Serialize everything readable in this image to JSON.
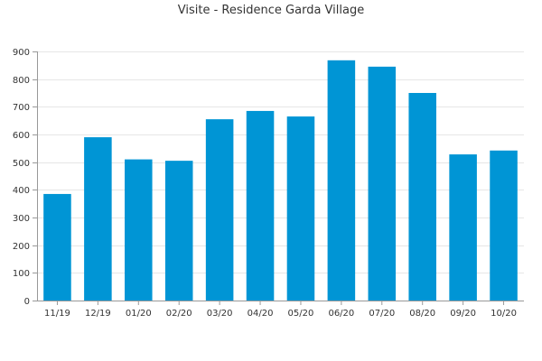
{
  "chart_data": {
    "type": "bar",
    "title": "Visite - Residence Garda Village",
    "xlabel": "",
    "ylabel": "",
    "categories": [
      "11/19",
      "12/19",
      "01/20",
      "02/20",
      "03/20",
      "04/20",
      "05/20",
      "06/20",
      "07/20",
      "08/20",
      "09/20",
      "10/20"
    ],
    "values": [
      385,
      590,
      510,
      505,
      655,
      685,
      665,
      868,
      845,
      750,
      528,
      542
    ],
    "ylim": [
      0,
      900
    ],
    "yticks": [
      0,
      100,
      200,
      300,
      400,
      500,
      600,
      700,
      800,
      900
    ],
    "grid": true,
    "legend": "none",
    "colors": {
      "bar": "#0095d5",
      "grid": "#e6e6e6",
      "axis": "#999999",
      "text": "#333333"
    }
  }
}
